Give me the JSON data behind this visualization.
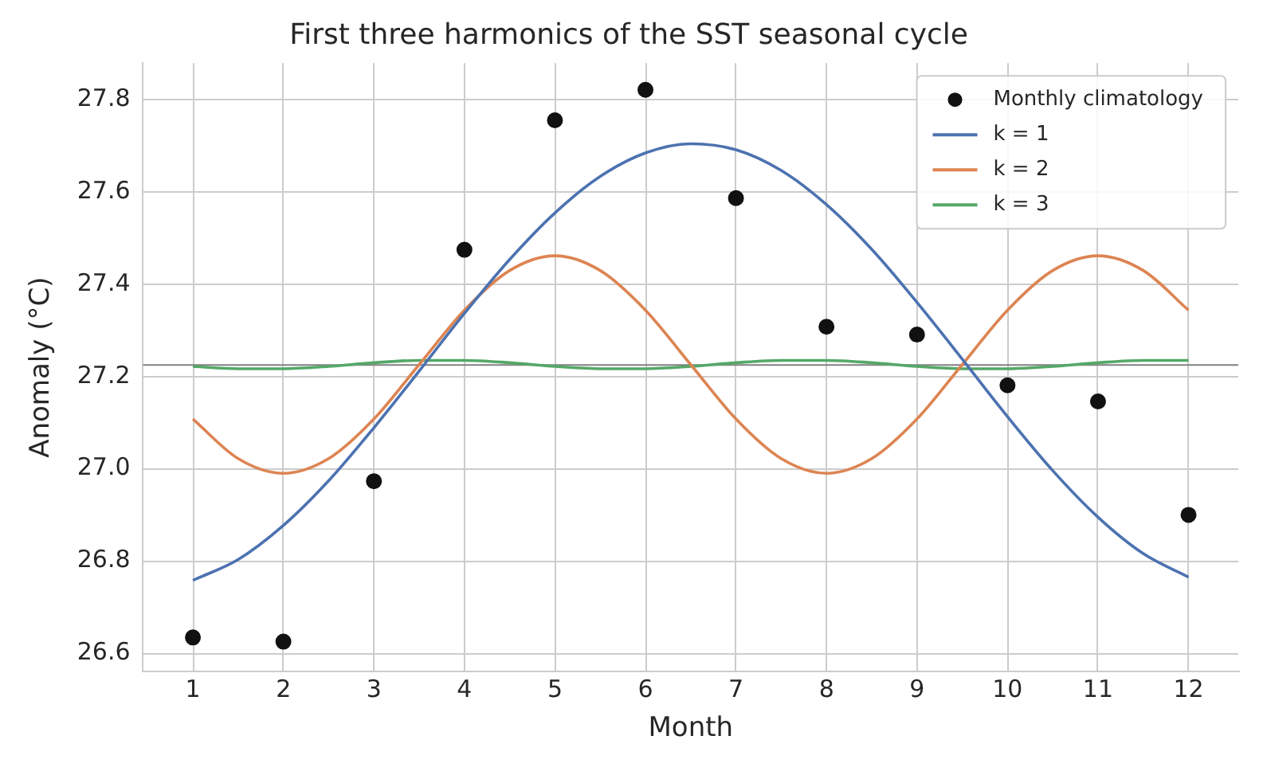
{
  "chart_data": {
    "type": "scatter",
    "title": "First three harmonics of the SST seasonal cycle",
    "xlabel": "Month",
    "ylabel": "Anomaly (°C)",
    "xlim": [
      0.45,
      12.55
    ],
    "xticks": [
      1,
      2,
      3,
      4,
      5,
      6,
      7,
      8,
      9,
      10,
      11,
      12
    ],
    "ylim": [
      26.56,
      27.88
    ],
    "yticks": [
      26.6,
      26.8,
      {
        "value": 27.0,
        "label": "27.0"
      },
      27.2,
      27.4,
      27.6,
      27.8
    ],
    "grid": true,
    "legend": "top right",
    "ref_lines": [
      {
        "axis": "y",
        "value": 27.225,
        "color": "#808080"
      }
    ],
    "series": [
      {
        "name": "Monthly climatology",
        "marker": "circle",
        "color": "#111111",
        "x": [
          1,
          2,
          3,
          4,
          5,
          6,
          7,
          8,
          9,
          10,
          11,
          12
        ],
        "values": [
          26.634,
          26.625,
          26.973,
          27.475,
          27.756,
          27.822,
          27.587,
          27.308,
          27.291,
          27.181,
          27.146,
          26.9
        ]
      },
      {
        "name": "k = 1",
        "type": "line",
        "color": "#4c72b0",
        "x": [
          1,
          1.5,
          2,
          2.5,
          3,
          3.5,
          4,
          4.5,
          5,
          5.5,
          6,
          6.5,
          7,
          7.5,
          8,
          8.5,
          9,
          9.5,
          10,
          10.5,
          11,
          11.5,
          12
        ],
        "values": [
          26.758,
          26.803,
          26.877,
          26.974,
          27.089,
          27.212,
          27.337,
          27.454,
          27.555,
          27.634,
          27.685,
          27.705,
          27.692,
          27.647,
          27.573,
          27.476,
          27.361,
          27.238,
          27.113,
          26.996,
          26.895,
          26.816,
          26.765
        ]
      },
      {
        "name": "k = 2",
        "type": "line",
        "color": "#dd8452",
        "x": [
          1,
          1.5,
          2,
          2.5,
          3,
          3.5,
          4,
          4.5,
          5,
          5.5,
          6,
          6.5,
          7,
          7.5,
          8,
          8.5,
          9,
          9.5,
          10,
          10.5,
          11,
          11.5,
          12
        ],
        "values": [
          27.108,
          27.022,
          26.99,
          27.022,
          27.108,
          27.226,
          27.344,
          27.43,
          27.462,
          27.43,
          27.344,
          27.226,
          27.108,
          27.022,
          26.99,
          27.022,
          27.108,
          27.226,
          27.344,
          27.43,
          27.462,
          27.43,
          27.344
        ]
      },
      {
        "name": "k = 3",
        "type": "line",
        "color": "#55a868",
        "x": [
          1,
          1.5,
          2,
          2.5,
          3,
          3.5,
          4,
          4.5,
          5,
          5.5,
          6,
          6.5,
          7,
          7.5,
          8,
          8.5,
          9,
          9.5,
          10,
          10.5,
          11,
          11.5,
          12
        ],
        "values": [
          27.222,
          27.217,
          27.217,
          27.222,
          27.23,
          27.235,
          27.235,
          27.23,
          27.222,
          27.217,
          27.217,
          27.222,
          27.23,
          27.235,
          27.235,
          27.23,
          27.222,
          27.217,
          27.217,
          27.222,
          27.23,
          27.235,
          27.235
        ]
      }
    ]
  }
}
